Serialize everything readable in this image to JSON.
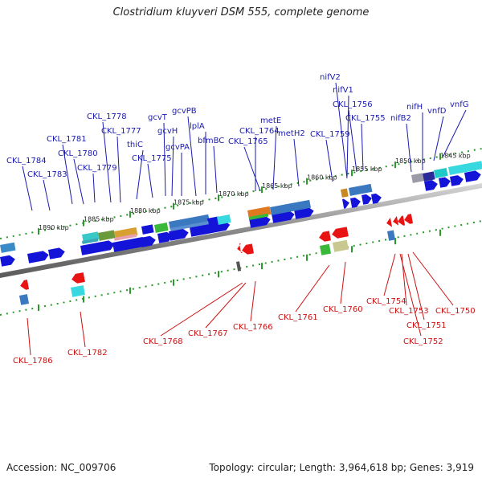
{
  "title": "Clostridium kluyveri DSM 555, complete genome",
  "footer": {
    "accession": "Accession: NC_009706",
    "stats": "Topology: circular; Length: 3,964,618 bp; Genes: 3,919"
  },
  "scale_labels": [
    "1890 kbp",
    "1885 kbp",
    "1880 kbp",
    "1875 kbp",
    "1870 kbp",
    "1865 kbp",
    "1860 kbp",
    "1855 kbp",
    "1850 kbp",
    "1845 kbp"
  ],
  "top_labels": [
    "CKL_1784",
    "CKL_1783",
    "CKL_1781",
    "CKL_1780",
    "CKL_1779",
    "CKL_1778",
    "CKL_1777",
    "thiC",
    "CKL_1775",
    "gcvT",
    "gcvH",
    "gcvPA",
    "gcvPB",
    "lplA",
    "bfmBC",
    "CKL_1765",
    "CKL_1764",
    "metE",
    "metH2",
    "CKL_1759",
    "nifV2",
    "nifV1",
    "CKL_1756",
    "CKL_1755",
    "nifB2",
    "nifH",
    "vnfD",
    "vnfG"
  ],
  "bottom_labels": [
    "CKL_1786",
    "CKL_1782",
    "CKL_1768",
    "CKL_1767",
    "CKL_1766",
    "CKL_1761",
    "CKL_1760",
    "CKL_1754",
    "CKL_1753",
    "CKL_1751",
    "CKL_1752",
    "CKL_1750"
  ],
  "colors": {
    "forward_gene": "#1414d8",
    "reverse_gene": "#e81414",
    "label_forward": "#1a1ab0",
    "label_reverse": "#cc1111",
    "backbone": "#888888"
  }
}
